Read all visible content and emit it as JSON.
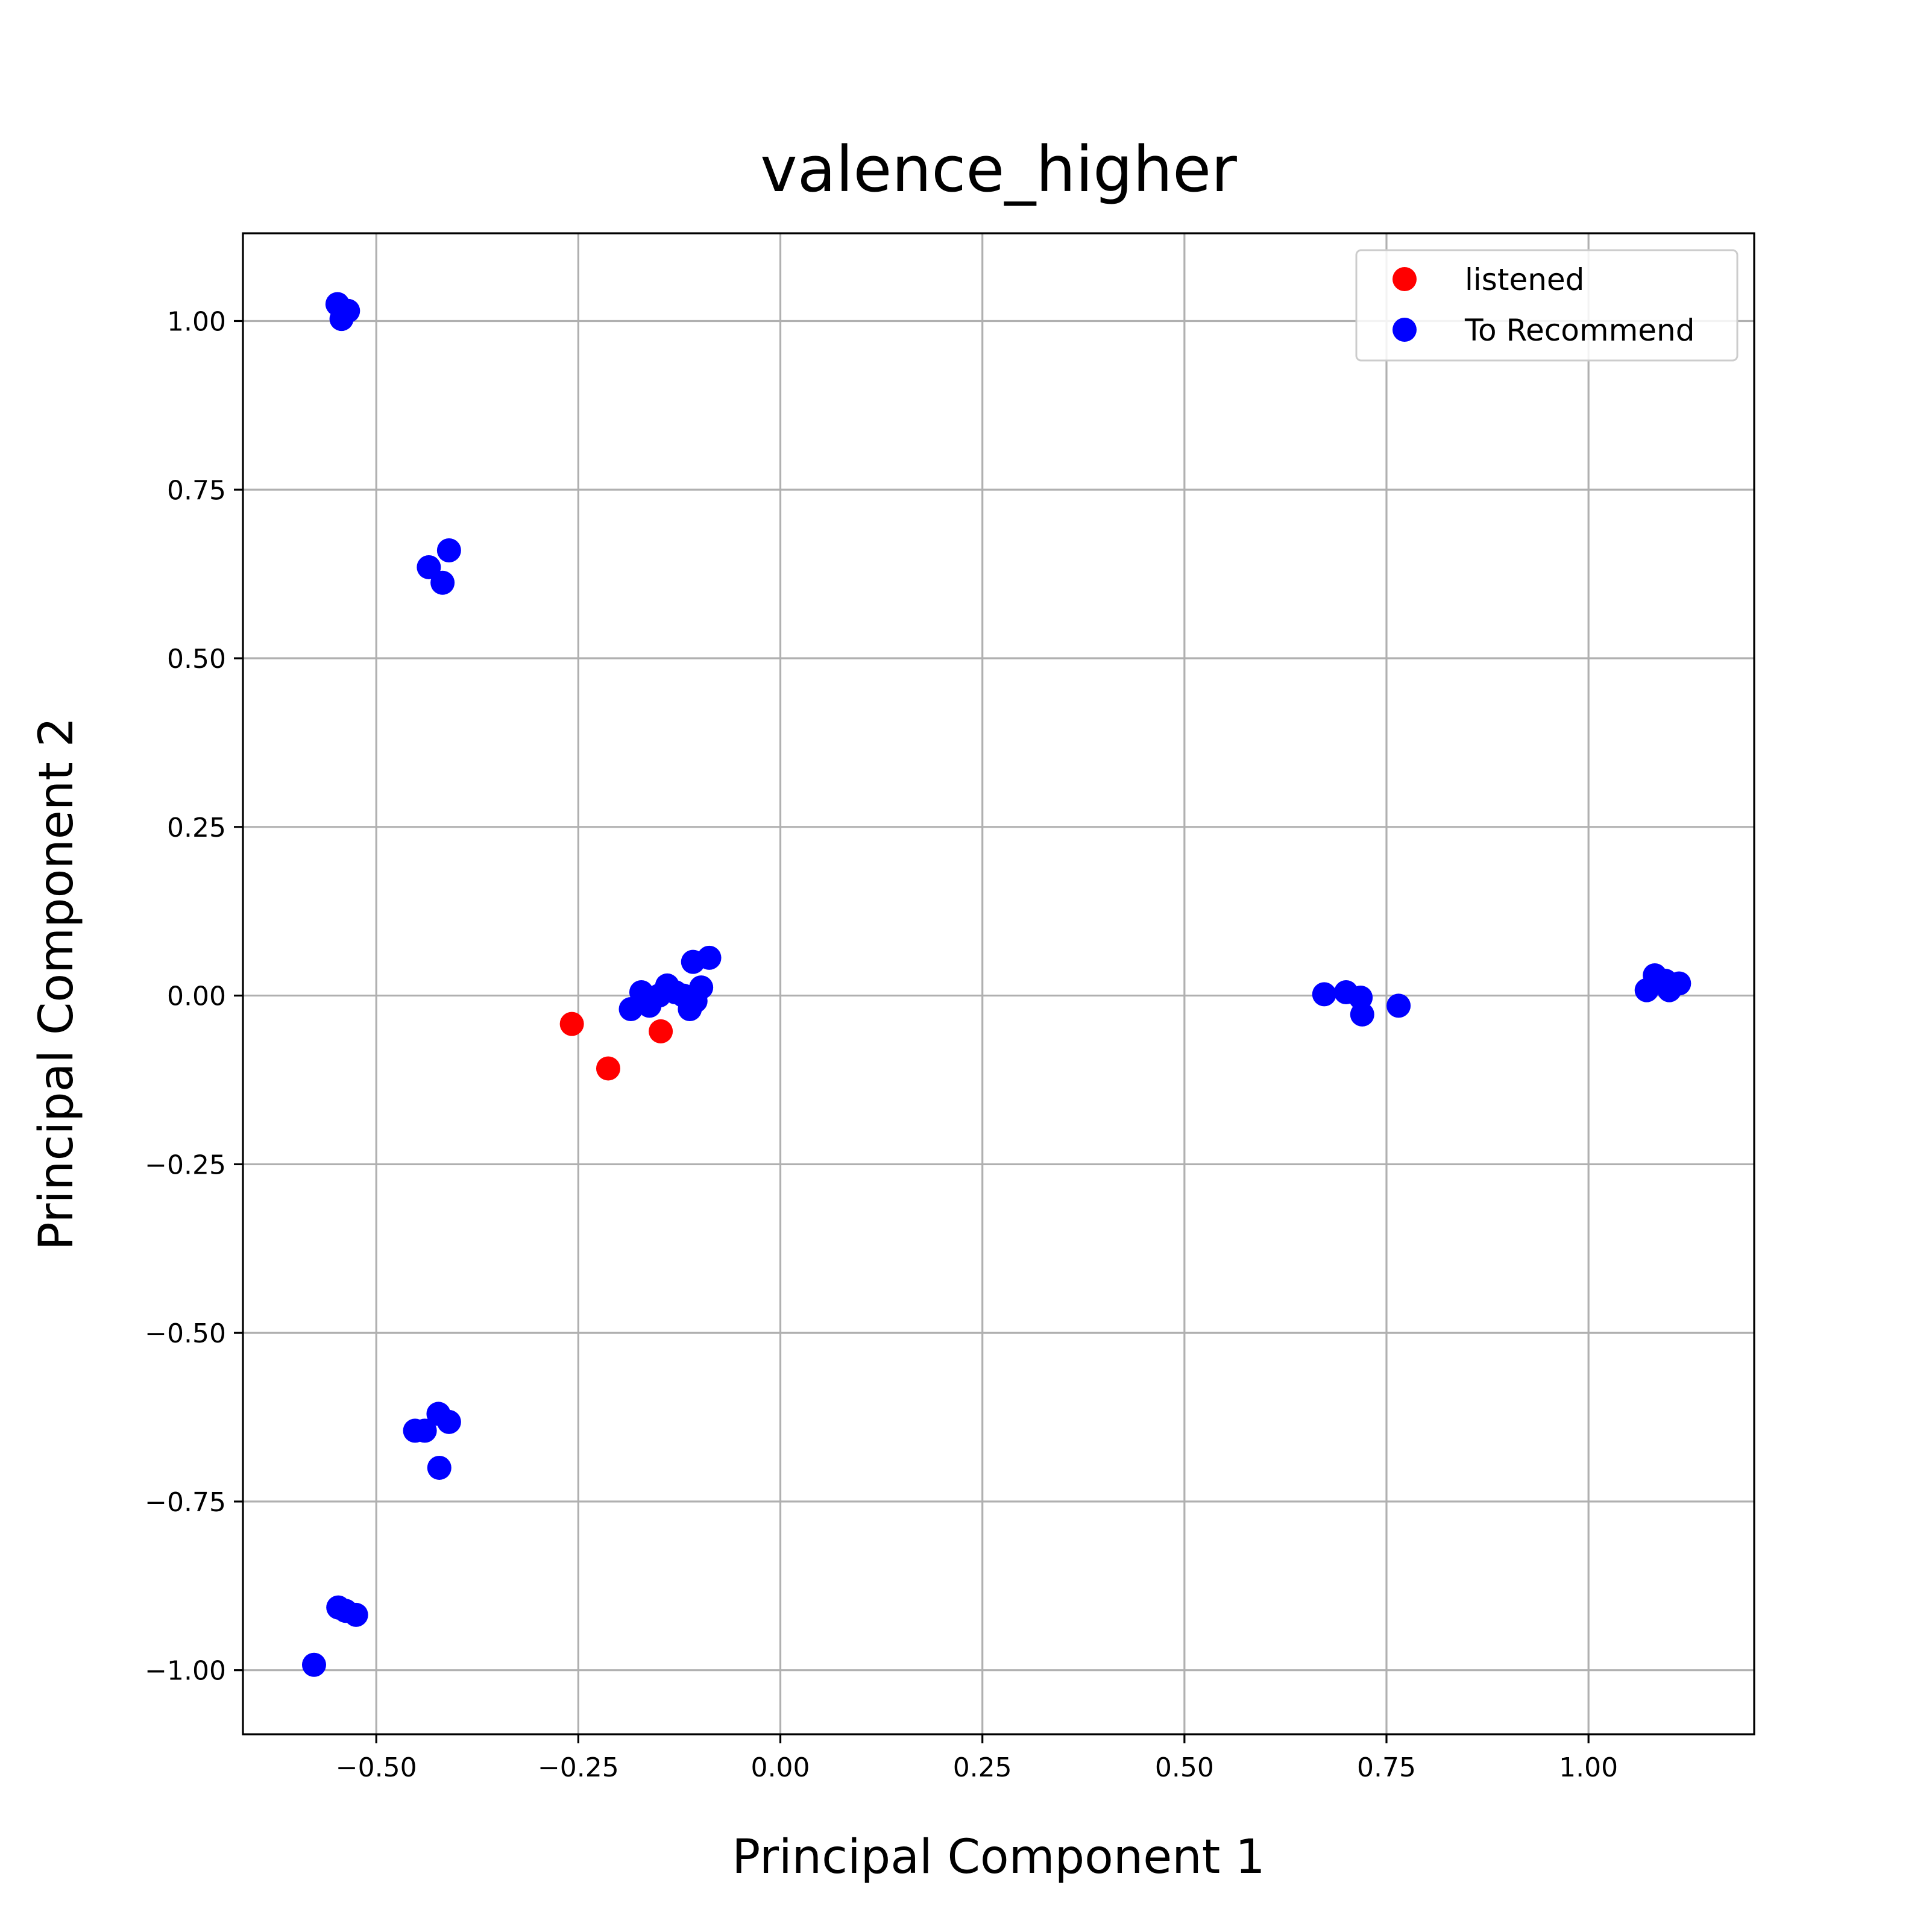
{
  "chart_data": {
    "type": "scatter",
    "title": "valence_higher",
    "xlabel": "Principal Component 1",
    "ylabel": "Principal Component 2",
    "xlim": [
      -0.665,
      1.205
    ],
    "ylim": [
      -1.095,
      1.13
    ],
    "xticks": [
      -0.5,
      -0.25,
      0.0,
      0.25,
      0.5,
      0.75,
      1.0
    ],
    "xtick_labels": [
      "−0.50",
      "−0.25",
      "0.00",
      "0.25",
      "0.50",
      "0.75",
      "1.00"
    ],
    "yticks": [
      -1.0,
      -0.75,
      -0.5,
      -0.25,
      0.0,
      0.25,
      0.5,
      0.75,
      1.0
    ],
    "ytick_labels": [
      "−1.00",
      "−0.75",
      "−0.50",
      "−0.25",
      "0.00",
      "0.25",
      "0.50",
      "0.75",
      "1.00"
    ],
    "grid": true,
    "legend_position": "top-right",
    "series": [
      {
        "name": "listened",
        "color": "#ff0000",
        "points": [
          [
            -0.258,
            -0.042
          ],
          [
            -0.213,
            -0.108
          ],
          [
            -0.148,
            -0.053
          ]
        ]
      },
      {
        "name": "To Recommend",
        "color": "#0000ff",
        "points": [
          [
            -0.548,
            1.025
          ],
          [
            -0.535,
            1.015
          ],
          [
            -0.543,
            1.003
          ],
          [
            -0.435,
            0.635
          ],
          [
            -0.41,
            0.66
          ],
          [
            -0.418,
            0.612
          ],
          [
            -0.185,
            -0.02
          ],
          [
            -0.172,
            0.005
          ],
          [
            -0.162,
            -0.015
          ],
          [
            -0.15,
            0.0
          ],
          [
            -0.14,
            0.015
          ],
          [
            -0.13,
            0.005
          ],
          [
            -0.12,
            0.0
          ],
          [
            -0.112,
            -0.02
          ],
          [
            -0.105,
            -0.008
          ],
          [
            -0.108,
            0.05
          ],
          [
            -0.098,
            0.012
          ],
          [
            -0.088,
            0.056
          ],
          [
            0.673,
            0.002
          ],
          [
            0.7,
            0.005
          ],
          [
            0.718,
            -0.003
          ],
          [
            0.72,
            -0.028
          ],
          [
            0.765,
            -0.015
          ],
          [
            1.072,
            0.008
          ],
          [
            1.082,
            0.03
          ],
          [
            1.095,
            0.022
          ],
          [
            1.1,
            0.008
          ],
          [
            1.112,
            0.018
          ],
          [
            -0.452,
            -0.645
          ],
          [
            -0.44,
            -0.645
          ],
          [
            -0.423,
            -0.62
          ],
          [
            -0.41,
            -0.632
          ],
          [
            -0.422,
            -0.7
          ],
          [
            -0.547,
            -0.907
          ],
          [
            -0.538,
            -0.912
          ],
          [
            -0.525,
            -0.918
          ],
          [
            -0.577,
            -0.992
          ]
        ]
      }
    ]
  }
}
